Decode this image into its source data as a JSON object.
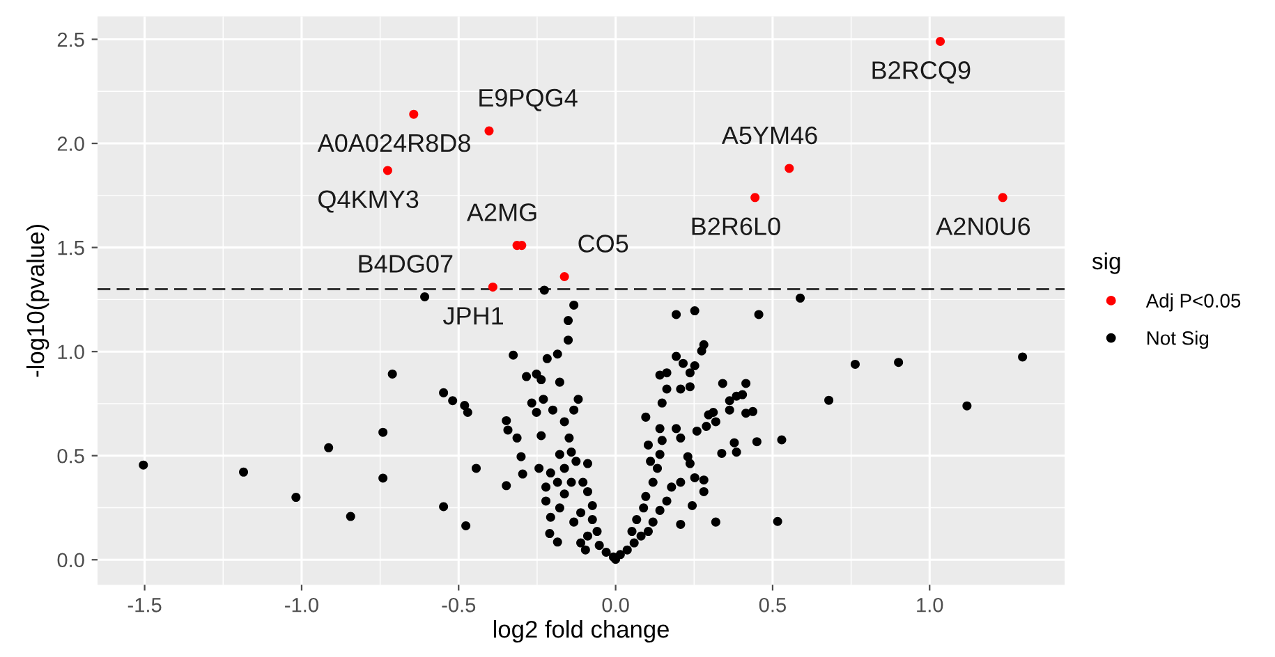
{
  "chart_data": {
    "type": "scatter",
    "xlabel": "log2 fold change",
    "ylabel": "-log10(pvalue)",
    "legend_title": "sig",
    "xlim": [
      -1.65,
      1.43
    ],
    "ylim": [
      -0.12,
      2.61
    ],
    "xticks": [
      {
        "value": -1.5,
        "label": "-1.5"
      },
      {
        "value": -1.0,
        "label": "-1.0"
      },
      {
        "value": -0.5,
        "label": "-0.5"
      },
      {
        "value": 0.0,
        "label": "0.0"
      },
      {
        "value": 0.5,
        "label": "0.5"
      },
      {
        "value": 1.0,
        "label": "1.0"
      }
    ],
    "yticks": [
      {
        "value": 0.0,
        "label": "0.0"
      },
      {
        "value": 0.5,
        "label": "0.5"
      },
      {
        "value": 1.0,
        "label": "1.0"
      },
      {
        "value": 1.5,
        "label": "1.5"
      },
      {
        "value": 2.0,
        "label": "2.0"
      },
      {
        "value": 2.5,
        "label": "2.5"
      }
    ],
    "grid": true,
    "legend": "right",
    "marker": "circle",
    "ref_lines": [
      {
        "axis": "y",
        "value": 1.3,
        "color": "#333333",
        "line_style": "dashed"
      }
    ],
    "series": [
      {
        "name": "Adj P<0.05",
        "color": "#ff0000",
        "x": [
          -0.643,
          -0.403,
          -0.726,
          -0.314,
          -0.299,
          -0.391,
          -0.163,
          1.034,
          0.553,
          0.444,
          1.233
        ],
        "values": [
          2.14,
          2.06,
          1.87,
          1.51,
          1.51,
          1.31,
          1.36,
          2.49,
          1.88,
          1.74,
          1.74
        ]
      },
      {
        "name": "Not Sig",
        "color": "#000000",
        "x": [
          -0.608,
          -0.326,
          -0.711,
          -0.548,
          -0.519,
          -0.481,
          -0.471,
          -0.348,
          -0.343,
          -0.741,
          -0.914,
          -1.504,
          -1.185,
          -0.444,
          -0.741,
          -0.348,
          -1.018,
          -0.548,
          -0.844,
          -0.477,
          -0.314,
          0.588,
          0.456,
          0.763,
          0.901,
          1.296,
          0.679,
          1.119,
          0.529,
          0.45,
          0.516,
          0.415,
          0.437,
          0.415,
          0.404,
          -0.227,
          -0.133,
          -0.151,
          -0.151,
          -0.218,
          -0.185,
          -0.284,
          -0.252,
          -0.237,
          -0.178,
          -0.267,
          -0.23,
          -0.252,
          -0.2,
          -0.119,
          -0.133,
          -0.163,
          -0.237,
          -0.148,
          -0.141,
          -0.178,
          -0.301,
          -0.126,
          -0.089,
          -0.296,
          -0.244,
          -0.163,
          -0.207,
          -0.141,
          -0.222,
          -0.185,
          -0.104,
          -0.163,
          -0.089,
          -0.222,
          -0.178,
          -0.074,
          -0.207,
          -0.111,
          -0.133,
          -0.074,
          -0.21,
          -0.185,
          -0.111,
          -0.089,
          -0.059,
          -0.096,
          -0.052,
          -0.03,
          -0.007,
          0.0,
          0.015,
          0.037,
          0.059,
          0.081,
          0.052,
          0.104,
          0.067,
          0.119,
          0.089,
          0.141,
          0.096,
          0.163,
          0.119,
          0.178,
          0.207,
          0.244,
          0.133,
          0.207,
          0.252,
          0.281,
          0.281,
          0.319,
          0.141,
          0.111,
          0.148,
          0.141,
          0.096,
          0.104,
          0.237,
          0.23,
          0.193,
          0.207,
          0.259,
          0.148,
          0.163,
          0.141,
          0.163,
          0.207,
          0.237,
          0.193,
          0.215,
          0.252,
          0.237,
          0.281,
          0.274,
          0.193,
          0.252,
          0.296,
          0.311,
          0.319,
          0.289,
          0.341,
          0.363,
          0.385,
          0.363,
          0.338,
          0.378,
          0.385
        ],
        "values": [
          1.263,
          0.983,
          0.892,
          0.802,
          0.764,
          0.741,
          0.708,
          0.668,
          0.623,
          0.612,
          0.538,
          0.455,
          0.421,
          0.439,
          0.392,
          0.356,
          0.3,
          0.255,
          0.208,
          0.163,
          0.585,
          1.257,
          1.178,
          0.939,
          0.948,
          0.974,
          0.766,
          0.739,
          0.576,
          0.567,
          0.184,
          0.847,
          0.712,
          0.704,
          0.793,
          1.295,
          1.223,
          1.149,
          1.055,
          0.966,
          0.988,
          0.88,
          0.892,
          0.865,
          0.853,
          0.753,
          0.771,
          0.708,
          0.719,
          0.771,
          0.719,
          0.663,
          0.596,
          0.585,
          0.517,
          0.506,
          0.495,
          0.473,
          0.462,
          0.412,
          0.439,
          0.439,
          0.417,
          0.372,
          0.349,
          0.372,
          0.372,
          0.316,
          0.327,
          0.282,
          0.249,
          0.26,
          0.204,
          0.226,
          0.181,
          0.193,
          0.126,
          0.085,
          0.081,
          0.114,
          0.136,
          0.047,
          0.069,
          0.036,
          0.013,
          0.002,
          0.025,
          0.047,
          0.081,
          0.114,
          0.136,
          0.136,
          0.193,
          0.181,
          0.249,
          0.237,
          0.304,
          0.282,
          0.372,
          0.349,
          0.17,
          0.26,
          0.439,
          0.372,
          0.394,
          0.383,
          0.327,
          0.181,
          0.506,
          0.473,
          0.573,
          0.63,
          0.685,
          0.551,
          0.462,
          0.495,
          0.63,
          0.585,
          0.618,
          0.753,
          0.82,
          0.887,
          0.898,
          0.82,
          0.831,
          0.977,
          0.943,
          0.932,
          0.898,
          1.033,
          1.003,
          1.178,
          1.196,
          0.696,
          0.708,
          0.663,
          0.641,
          0.847,
          0.764,
          0.786,
          0.719,
          0.511,
          0.562,
          0.517
        ]
      }
    ],
    "annotations": [
      {
        "text": "A0A024R8D8",
        "x": -0.643,
        "y": 2.14
      },
      {
        "text": "E9PQG4",
        "x": -0.403,
        "y": 2.06
      },
      {
        "text": "Q4KMY3",
        "x": -0.726,
        "y": 1.87
      },
      {
        "text": "A2MG",
        "x": -0.299,
        "y": 1.51
      },
      {
        "text": "JPH1",
        "x": -0.391,
        "y": 1.31
      },
      {
        "text": "B4DG07",
        "x": -0.608,
        "y": 1.263
      },
      {
        "text": "CO5",
        "x": -0.163,
        "y": 1.36
      },
      {
        "text": "B2RCQ9",
        "x": 1.034,
        "y": 2.49
      },
      {
        "text": "A5YM46",
        "x": 0.553,
        "y": 1.88
      },
      {
        "text": "B2R6L0",
        "x": 0.444,
        "y": 1.74
      },
      {
        "text": "A2N0U6",
        "x": 1.233,
        "y": 1.74
      }
    ]
  }
}
